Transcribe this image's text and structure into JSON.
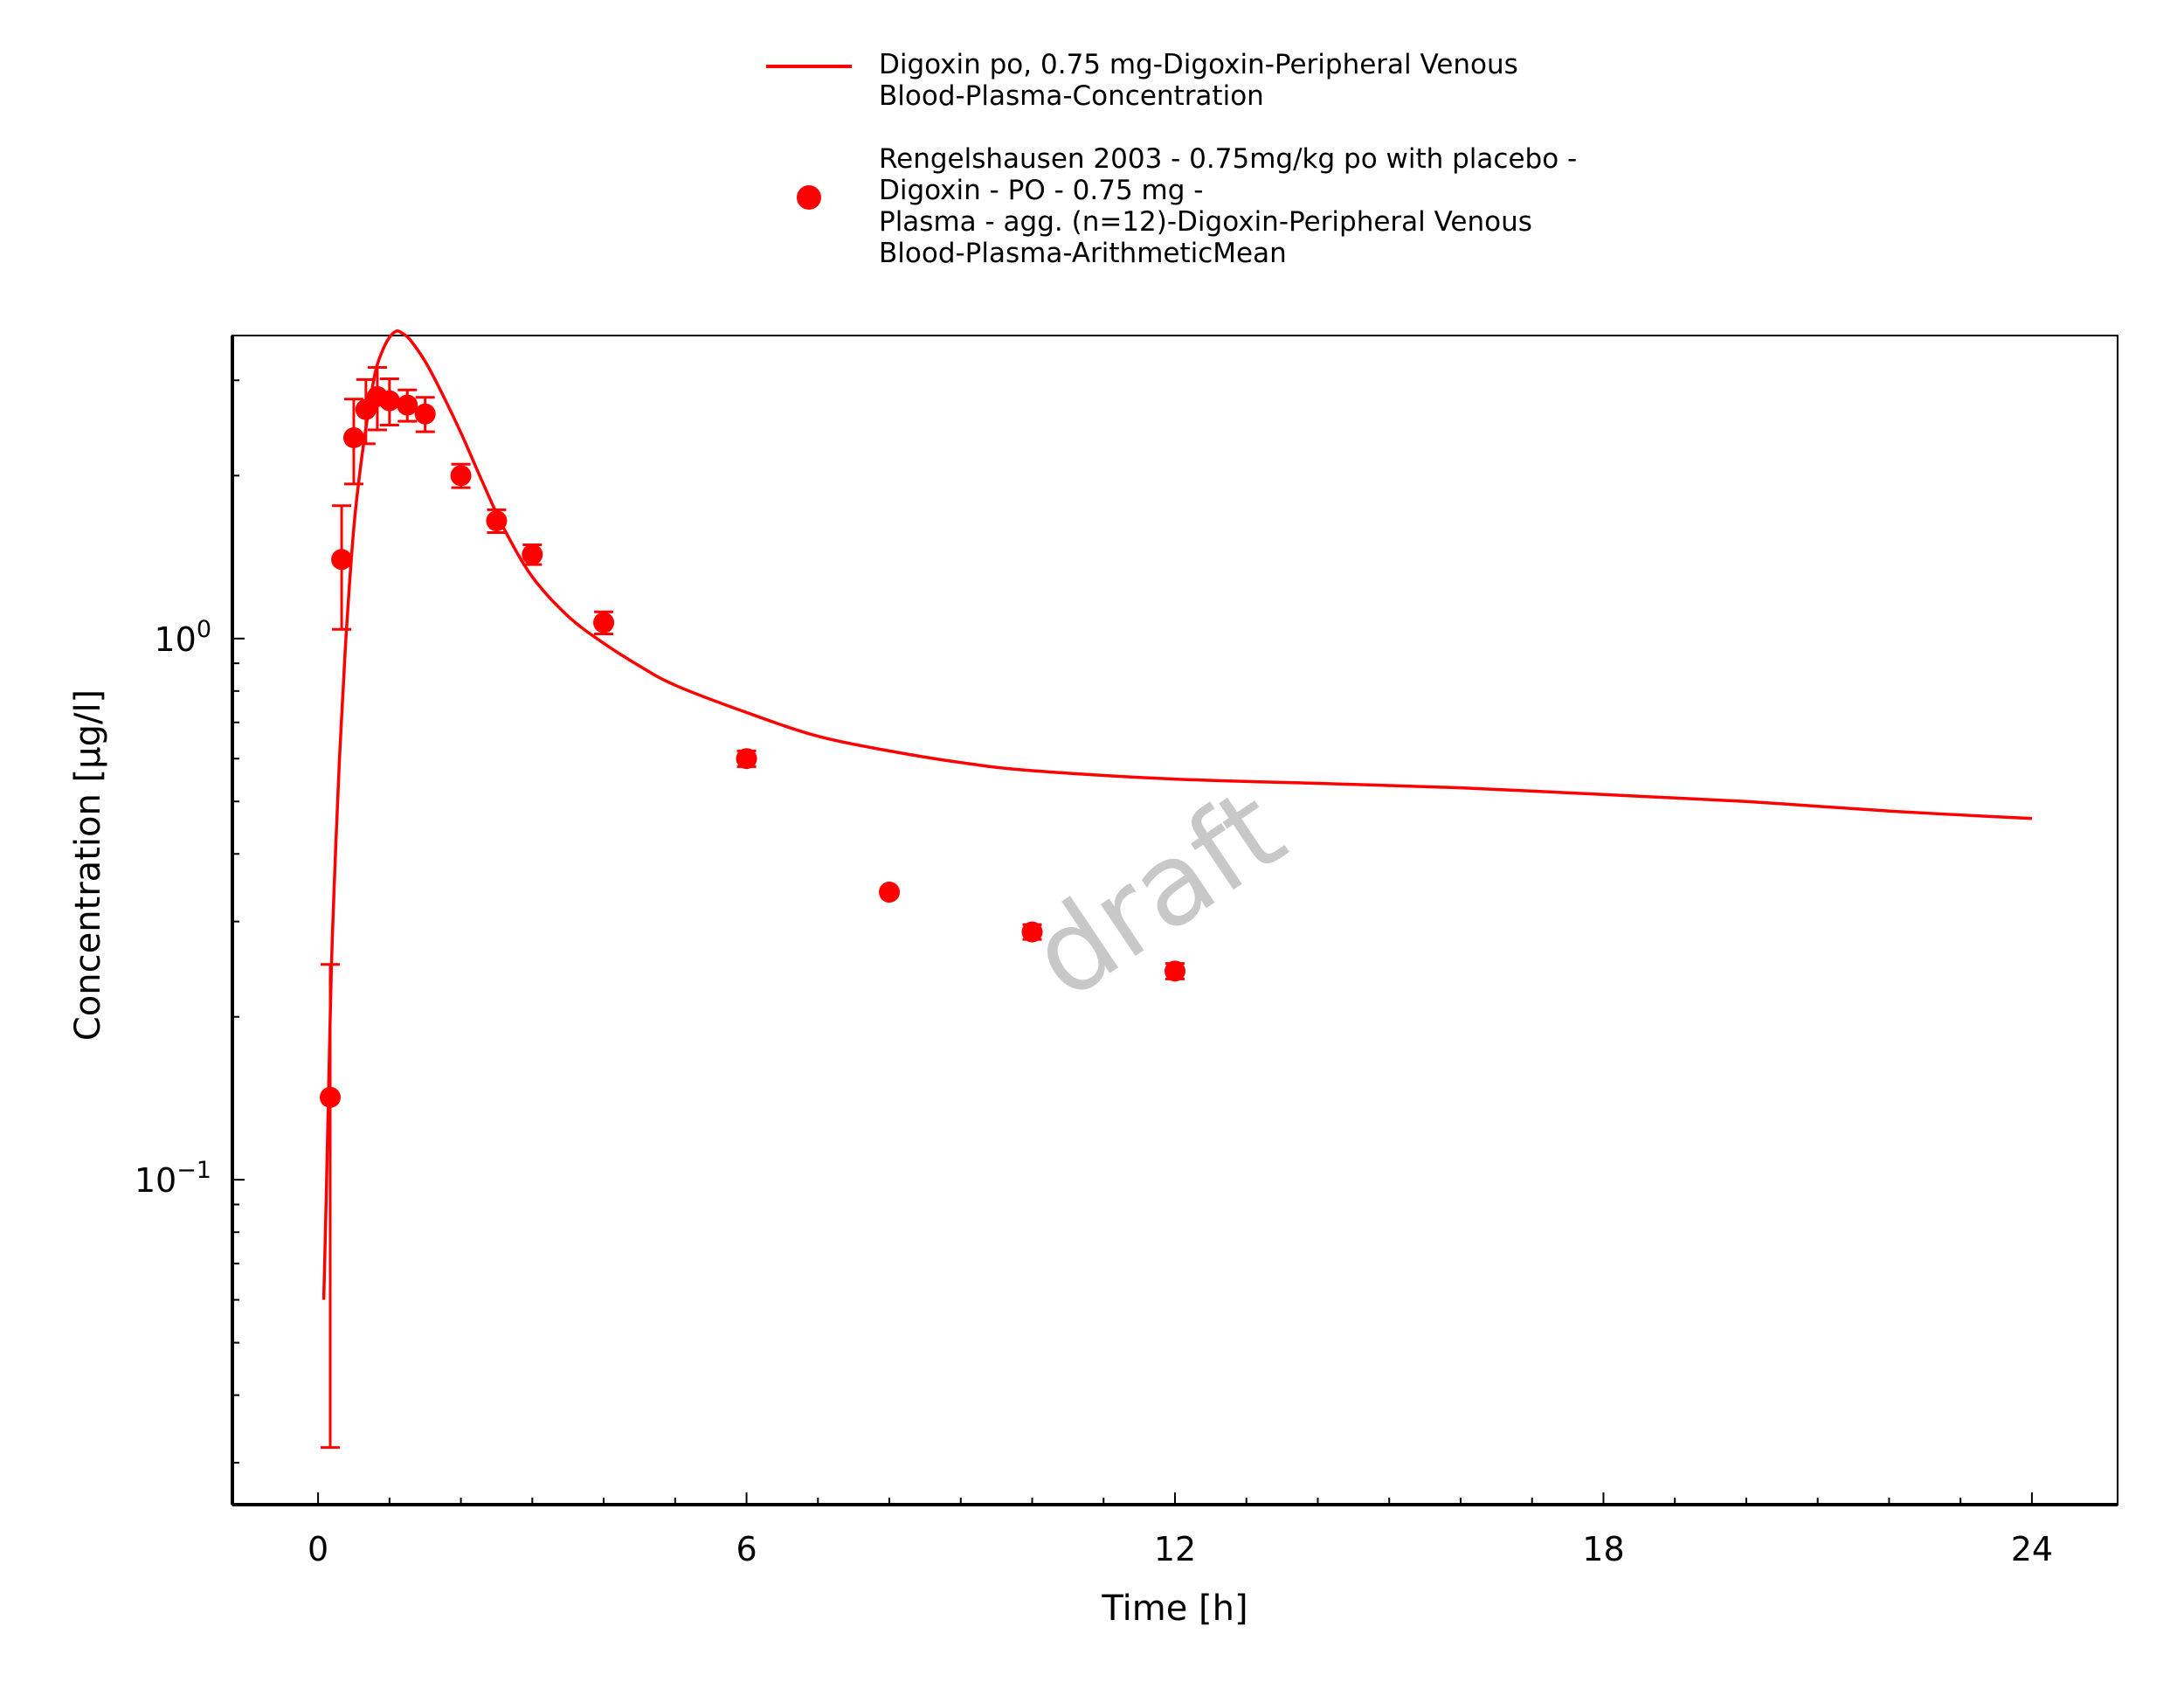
{
  "chart_data": {
    "type": "scatter",
    "xlabel": "Time [h]",
    "ylabel": "Concentration [µg/l]",
    "xlim": [
      -1.2,
      25.2
    ],
    "ylim": [
      0.0251,
      3.63
    ],
    "y_scale": "log",
    "x_ticks": [
      0,
      6,
      12,
      18,
      24
    ],
    "x_tick_labels": [
      "0",
      "6",
      "12",
      "18",
      "24"
    ],
    "y_ticks": [
      {
        "value": 1.0,
        "base": "10",
        "exp": "0"
      },
      {
        "value": 0.1,
        "base": "10",
        "exp": "−1"
      }
    ],
    "legend_position": "top",
    "watermark": "draft",
    "color": "#ff0000",
    "series": [
      {
        "name": "Digoxin po, 0.75 mg-Digoxin-Peripheral Venous Blood-Plasma-Concentration",
        "legend_lines": [
          "Digoxin po, 0.75 mg-Digoxin-Peripheral Venous",
          "Blood-Plasma-Concentration"
        ],
        "type": "line",
        "x": [
          0.08,
          0.12,
          0.17,
          0.2,
          0.25,
          0.3,
          0.35,
          0.4,
          0.5,
          0.6,
          0.7,
          0.8,
          0.9,
          1.0,
          1.1,
          1.2,
          1.3,
          1.5,
          1.7,
          2.0,
          2.3,
          2.6,
          3.0,
          3.5,
          4.0,
          4.5,
          5.0,
          6.0,
          7.0,
          8.0,
          9.0,
          10.0,
          12.0,
          14.0,
          16.0,
          18.0,
          20.0,
          22.0,
          24.0
        ],
        "y": [
          0.06,
          0.1,
          0.2,
          0.28,
          0.42,
          0.6,
          0.8,
          1.05,
          1.6,
          2.1,
          2.6,
          3.1,
          3.4,
          3.6,
          3.7,
          3.65,
          3.55,
          3.25,
          2.9,
          2.4,
          1.95,
          1.6,
          1.3,
          1.1,
          0.98,
          0.89,
          0.82,
          0.73,
          0.66,
          0.62,
          0.59,
          0.57,
          0.55,
          0.54,
          0.53,
          0.515,
          0.5,
          0.48,
          0.465
        ]
      },
      {
        "name": "Rengelshausen 2003 - 0.75mg/kg po with placebo - Digoxin - PO - 0.75 mg - Plasma - agg. (n=12)-Digoxin-Peripheral Venous Blood-Plasma-ArithmeticMean",
        "legend_lines": [
          "Rengelshausen 2003 - 0.75mg/kg po with placebo -",
          "Digoxin - PO - 0.75 mg -",
          "Plasma - agg. (n=12)-Digoxin-Peripheral Venous",
          "Blood-Plasma-ArithmeticMean"
        ],
        "type": "scatter",
        "points": [
          {
            "x": 0.17,
            "y": 0.142,
            "lo": 0.032,
            "hi": 0.25
          },
          {
            "x": 0.33,
            "y": 1.4,
            "lo": 1.04,
            "hi": 1.76
          },
          {
            "x": 0.5,
            "y": 2.35,
            "lo": 1.93,
            "hi": 2.77
          },
          {
            "x": 0.67,
            "y": 2.65,
            "lo": 2.29,
            "hi": 3.01
          },
          {
            "x": 0.83,
            "y": 2.8,
            "lo": 2.43,
            "hi": 3.17
          },
          {
            "x": 1.0,
            "y": 2.75,
            "lo": 2.48,
            "hi": 3.02
          },
          {
            "x": 1.25,
            "y": 2.7,
            "lo": 2.52,
            "hi": 2.88
          },
          {
            "x": 1.5,
            "y": 2.6,
            "lo": 2.41,
            "hi": 2.79
          },
          {
            "x": 2.0,
            "y": 2.0,
            "lo": 1.9,
            "hi": 2.1
          },
          {
            "x": 2.5,
            "y": 1.65,
            "lo": 1.57,
            "hi": 1.73
          },
          {
            "x": 3.0,
            "y": 1.43,
            "lo": 1.37,
            "hi": 1.49
          },
          {
            "x": 4.0,
            "y": 1.07,
            "lo": 1.02,
            "hi": 1.12
          },
          {
            "x": 6.0,
            "y": 0.6,
            "lo": 0.58,
            "hi": 0.62
          },
          {
            "x": 8.0,
            "y": 0.34,
            "lo": 0.34,
            "hi": 0.34
          },
          {
            "x": 10.0,
            "y": 0.287,
            "lo": 0.278,
            "hi": 0.296
          },
          {
            "x": 12.0,
            "y": 0.243,
            "lo": 0.235,
            "hi": 0.251
          }
        ]
      }
    ]
  }
}
